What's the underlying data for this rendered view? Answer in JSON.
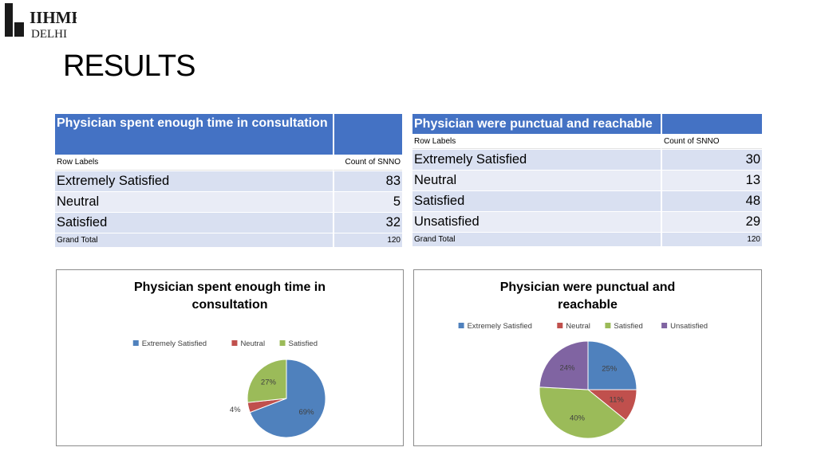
{
  "logo": {
    "text_top": "IIHMR",
    "text_bottom": "DELHI"
  },
  "page_title": "RESULTS",
  "table_left": {
    "title": "Physician spent enough time in consultation",
    "col_row_labels": "Row Labels",
    "col_count": "Count of SNNO",
    "rows": [
      {
        "label": "Extremely Satisfied",
        "count": "83"
      },
      {
        "label": "Neutral",
        "count": "5"
      },
      {
        "label": "Satisfied",
        "count": "32"
      }
    ],
    "grand_total_label": "Grand Total",
    "grand_total_value": "120"
  },
  "table_right": {
    "title": "Physician were punctual and reachable",
    "col_row_labels": "Row Labels",
    "col_count": "Count of SNNO",
    "rows": [
      {
        "label": "Extremely Satisfied",
        "count": "30"
      },
      {
        "label": "Neutral",
        "count": "13"
      },
      {
        "label": "Satisfied",
        "count": "48"
      },
      {
        "label": "Unsatisfied",
        "count": "29"
      }
    ],
    "grand_total_label": "Grand Total",
    "grand_total_value": "120"
  },
  "colors": {
    "extremely_satisfied": "#4f81bd",
    "neutral": "#c0504d",
    "satisfied": "#9bbb59",
    "unsatisfied": "#8064a2",
    "header_blue": "#4472c4"
  },
  "chart_data": [
    {
      "type": "pie",
      "title_line1": "Physician spent enough time in",
      "title_line2": "consultation",
      "legend_position": "top",
      "categories": [
        "Extremely Satisfied",
        "Neutral",
        "Satisfied"
      ],
      "values": [
        83,
        5,
        32
      ],
      "labels": [
        "69%",
        "4%",
        "27%"
      ],
      "colors": [
        "#4f81bd",
        "#c0504d",
        "#9bbb59"
      ]
    },
    {
      "type": "pie",
      "title_line1": "Physician were punctual and",
      "title_line2": "reachable",
      "legend_position": "top",
      "categories": [
        "Extremely Satisfied",
        "Neutral",
        "Satisfied",
        "Unsatisfied"
      ],
      "values": [
        30,
        13,
        48,
        29
      ],
      "labels": [
        "25%",
        "11%",
        "40%",
        "24%"
      ],
      "colors": [
        "#4f81bd",
        "#c0504d",
        "#9bbb59",
        "#8064a2"
      ]
    }
  ]
}
